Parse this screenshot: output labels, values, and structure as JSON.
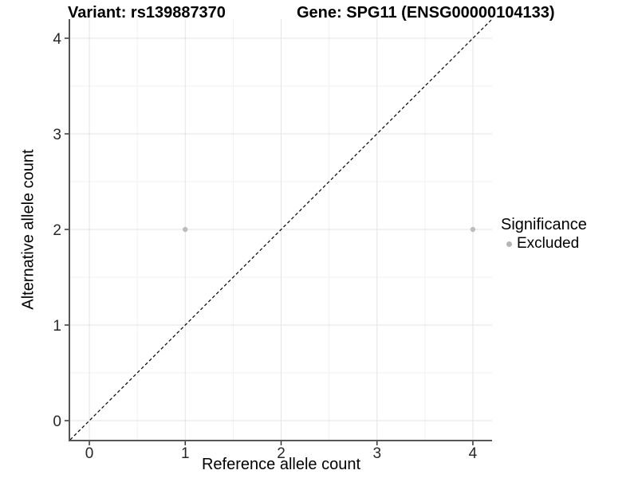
{
  "chart_data": {
    "type": "scatter",
    "title_left": "Variant: rs139887370",
    "title_right": "Gene: SPG11 (ENSG00000104133)",
    "xlabel": "Reference allele count",
    "ylabel": "Alternative allele count",
    "xlim": [
      -0.2,
      4.2
    ],
    "ylim": [
      -0.2,
      4.2
    ],
    "x_ticks": [
      0,
      1,
      2,
      3,
      4
    ],
    "y_ticks": [
      0,
      1,
      2,
      3,
      4
    ],
    "x_minor_ticks": [
      0.5,
      1.5,
      2.5,
      3.5
    ],
    "y_minor_ticks": [
      0.5,
      1.5,
      2.5,
      3.5
    ],
    "grid": "major+minor",
    "series": [
      {
        "name": "Excluded",
        "color": "#bcbcbc",
        "points": [
          {
            "x": 1,
            "y": 2
          },
          {
            "x": 4,
            "y": 2
          }
        ]
      }
    ],
    "reference_line": {
      "slope": 1,
      "intercept": 0,
      "style": "dashed",
      "color": "#000000"
    },
    "legend": {
      "title": "Significance",
      "position": "right",
      "items": [
        {
          "label": "Excluded",
          "color": "#b5b5b5"
        }
      ]
    },
    "style": {
      "background": "#ffffff",
      "grid_major_color": "#e3e3e3",
      "grid_minor_color": "#f1f1f1",
      "axis_line_color": "#555555",
      "tick_color": "#333333",
      "tick_label_color": "#262626",
      "point_radius": 3.2,
      "tick_font_size": 19
    }
  }
}
